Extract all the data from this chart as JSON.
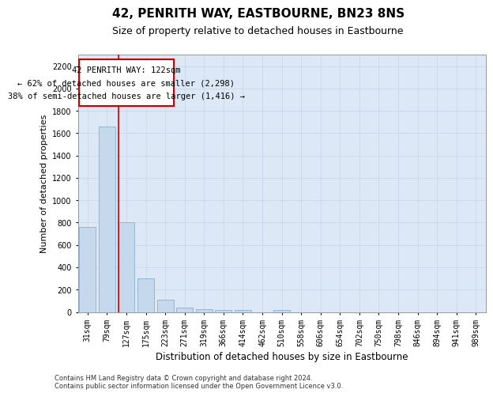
{
  "title": "42, PENRITH WAY, EASTBOURNE, BN23 8NS",
  "subtitle": "Size of property relative to detached houses in Eastbourne",
  "xlabel": "Distribution of detached houses by size in Eastbourne",
  "ylabel": "Number of detached properties",
  "categories": [
    "31sqm",
    "79sqm",
    "127sqm",
    "175sqm",
    "223sqm",
    "271sqm",
    "319sqm",
    "366sqm",
    "414sqm",
    "462sqm",
    "510sqm",
    "558sqm",
    "606sqm",
    "654sqm",
    "702sqm",
    "750sqm",
    "798sqm",
    "846sqm",
    "894sqm",
    "941sqm",
    "989sqm"
  ],
  "values": [
    760,
    1660,
    800,
    300,
    110,
    40,
    25,
    18,
    18,
    0,
    20,
    0,
    0,
    0,
    0,
    0,
    0,
    0,
    0,
    0,
    0
  ],
  "bar_color": "#c5d8ec",
  "bar_edge_color": "#8ab0cc",
  "grid_color": "#c8d8e8",
  "background_color": "#dce8f5",
  "annotation_box_edge_color": "#cc0000",
  "property_line_color": "#cc0000",
  "annotation_text_line1": "42 PENRITH WAY: 122sqm",
  "annotation_text_line2": "← 62% of detached houses are smaller (2,298)",
  "annotation_text_line3": "38% of semi-detached houses are larger (1,416) →",
  "ylim": [
    0,
    2300
  ],
  "yticks": [
    0,
    200,
    400,
    600,
    800,
    1000,
    1200,
    1400,
    1600,
    1800,
    2000,
    2200
  ],
  "footer_line1": "Contains HM Land Registry data © Crown copyright and database right 2024.",
  "footer_line2": "Contains public sector information licensed under the Open Government Licence v3.0.",
  "title_fontsize": 11,
  "subtitle_fontsize": 9,
  "xlabel_fontsize": 8.5,
  "ylabel_fontsize": 8,
  "tick_fontsize": 7,
  "annotation_fontsize": 7.5,
  "footer_fontsize": 6
}
